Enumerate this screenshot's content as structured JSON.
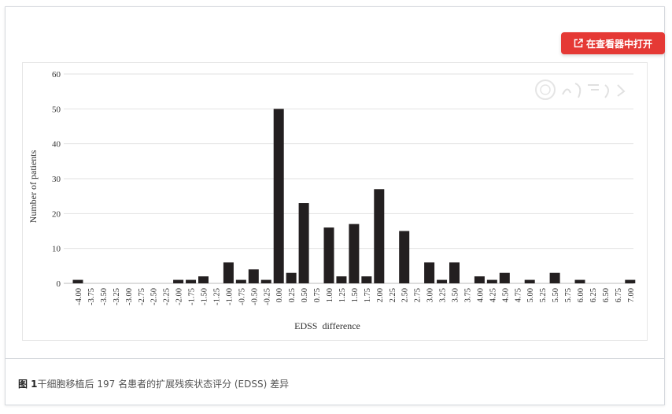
{
  "open_button": {
    "label": "在查看器中打开",
    "icon": "external-link-icon",
    "color": "#e53935"
  },
  "caption": {
    "prefix": "图 1",
    "text": "干细胞移植后 197 名患者的扩展残疾状态评分 (EDSS) 差异"
  },
  "watermark": {
    "text": "中华医学会"
  },
  "chart_data": {
    "type": "bar",
    "xlabel": "EDSS  difference",
    "ylabel": "Number of patients",
    "ylim": [
      0,
      60
    ],
    "yticks": [
      0,
      10,
      20,
      30,
      40,
      50,
      60
    ],
    "grid": true,
    "bar_color": "#231f20",
    "categories": [
      "-4.00",
      "-3.75",
      "-3.50",
      "-3.25",
      "-3.00",
      "-2.75",
      "-2.50",
      "-2.25",
      "-2.00",
      "-1.75",
      "-1.50",
      "-1.25",
      "-1.00",
      "-0.75",
      "-0.50",
      "-0.25",
      "0.00",
      "0.25",
      "0.50",
      "0.75",
      "1.00",
      "1.25",
      "1.50",
      "1.75",
      "2.00",
      "2.25",
      "2.50",
      "2.75",
      "3.00",
      "3.25",
      "3.50",
      "3.75",
      "4.00",
      "4.25",
      "4.50",
      "4.75",
      "5.00",
      "5.25",
      "5.50",
      "5.75",
      "6.00",
      "6.25",
      "6.50",
      "6.75",
      "7.00"
    ],
    "values": [
      1,
      0,
      0,
      0,
      0,
      0,
      0,
      0,
      1,
      1,
      2,
      0,
      6,
      1,
      4,
      1,
      50,
      3,
      23,
      0,
      16,
      2,
      17,
      2,
      27,
      0,
      15,
      0,
      6,
      1,
      6,
      0,
      2,
      1,
      3,
      0,
      1,
      0,
      3,
      0,
      1,
      0,
      0,
      0,
      1
    ]
  }
}
